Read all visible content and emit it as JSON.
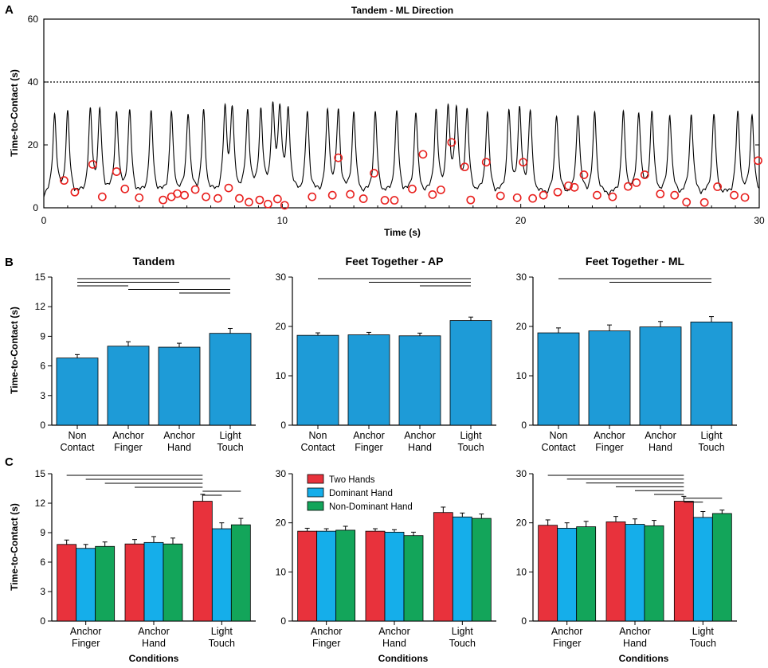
{
  "figure": {
    "panel_letters": [
      "A",
      "B",
      "C"
    ]
  },
  "colors": {
    "blue_bar": "#1E9BD7",
    "two_hands": "#E8323C",
    "dominant_hand": "#15AEEA",
    "non_dominant_hand": "#13A55A",
    "marker": "#E8201E"
  },
  "chart_data": [
    {
      "id": "A",
      "type": "line",
      "title": "Tandem - ML Direction",
      "xlabel": "Time (s)",
      "ylabel": "Time-to-Contact (s)",
      "xlim": [
        0,
        30
      ],
      "ylim": [
        0,
        60
      ],
      "xticks": [
        0,
        10,
        20,
        30
      ],
      "yticks": [
        0,
        20,
        40,
        60
      ],
      "threshold": 40,
      "spike_times": [
        0.45,
        1.0,
        1.95,
        2.35,
        3.05,
        3.6,
        4.5,
        5.35,
        6.05,
        6.7,
        7.6,
        7.9,
        8.55,
        9.1,
        9.6,
        9.9,
        10.25,
        11.05,
        11.9,
        12.35,
        13.0,
        13.9,
        14.8,
        15.6,
        16.45,
        16.95,
        17.3,
        17.75,
        18.6,
        19.5,
        19.95,
        20.4,
        21.5,
        22.4,
        23.1,
        24.3,
        24.95,
        25.5,
        26.25,
        27.15,
        28.1,
        29.1,
        29.7
      ],
      "marker_points": [
        [
          0.85,
          8.7
        ],
        [
          1.3,
          5.0
        ],
        [
          2.05,
          13.8
        ],
        [
          2.45,
          3.5
        ],
        [
          3.05,
          11.5
        ],
        [
          3.4,
          6.0
        ],
        [
          4.0,
          3.2
        ],
        [
          5.0,
          2.5
        ],
        [
          5.35,
          3.5
        ],
        [
          5.6,
          4.5
        ],
        [
          5.9,
          4.0
        ],
        [
          6.35,
          5.8
        ],
        [
          6.8,
          3.5
        ],
        [
          7.3,
          3.0
        ],
        [
          7.75,
          6.3
        ],
        [
          8.2,
          3.0
        ],
        [
          8.6,
          1.8
        ],
        [
          9.05,
          2.5
        ],
        [
          9.4,
          1.2
        ],
        [
          9.8,
          2.8
        ],
        [
          10.1,
          0.8
        ],
        [
          11.25,
          3.5
        ],
        [
          12.1,
          4.0
        ],
        [
          12.35,
          15.9
        ],
        [
          12.85,
          4.3
        ],
        [
          13.4,
          2.9
        ],
        [
          13.85,
          11.0
        ],
        [
          14.3,
          2.4
        ],
        [
          14.7,
          2.4
        ],
        [
          15.45,
          6.0
        ],
        [
          15.9,
          17.0
        ],
        [
          16.3,
          4.2
        ],
        [
          16.65,
          5.7
        ],
        [
          17.1,
          20.8
        ],
        [
          17.65,
          13.0
        ],
        [
          17.9,
          2.5
        ],
        [
          18.55,
          14.5
        ],
        [
          19.15,
          3.8
        ],
        [
          19.85,
          3.2
        ],
        [
          20.1,
          14.5
        ],
        [
          20.5,
          3.0
        ],
        [
          20.95,
          4.0
        ],
        [
          21.55,
          5.0
        ],
        [
          22.0,
          7.0
        ],
        [
          22.25,
          6.5
        ],
        [
          22.65,
          10.5
        ],
        [
          23.2,
          4.0
        ],
        [
          23.85,
          3.5
        ],
        [
          24.5,
          6.8
        ],
        [
          24.85,
          8.0
        ],
        [
          25.2,
          10.5
        ],
        [
          25.85,
          4.4
        ],
        [
          26.45,
          4.0
        ],
        [
          26.95,
          1.8
        ],
        [
          27.7,
          1.7
        ],
        [
          28.25,
          6.7
        ],
        [
          28.95,
          4.0
        ],
        [
          29.4,
          3.3
        ],
        [
          29.95,
          15.0
        ]
      ]
    },
    {
      "id": "B1",
      "type": "bar",
      "title": "Tandem",
      "ylabel": "Time-to-Contact (s)",
      "categories": [
        [
          "Non",
          "Contact"
        ],
        [
          "Anchor",
          "Finger"
        ],
        [
          "Anchor",
          "Hand"
        ],
        [
          "Light",
          "Touch"
        ]
      ],
      "values": [
        6.8,
        8.0,
        7.9,
        9.3
      ],
      "errors": [
        0.35,
        0.45,
        0.4,
        0.5
      ],
      "ylim": [
        0,
        15
      ],
      "yticks": [
        0,
        3,
        6,
        9,
        12,
        15
      ],
      "sig_bars": [
        [
          0,
          3
        ],
        [
          0,
          2
        ],
        [
          0,
          1
        ],
        [
          1,
          3
        ],
        [
          2,
          3
        ]
      ]
    },
    {
      "id": "B2",
      "type": "bar",
      "title": "Feet Together - AP",
      "categories": [
        [
          "Non",
          "Contact"
        ],
        [
          "Anchor",
          "Finger"
        ],
        [
          "Anchor",
          "Hand"
        ],
        [
          "Light",
          "Touch"
        ]
      ],
      "values": [
        18.2,
        18.3,
        18.1,
        21.2
      ],
      "errors": [
        0.5,
        0.5,
        0.55,
        0.7
      ],
      "ylim": [
        0,
        30
      ],
      "yticks": [
        0,
        10,
        20,
        30
      ],
      "sig_bars": [
        [
          0,
          3
        ],
        [
          1,
          3
        ],
        [
          2,
          3
        ]
      ]
    },
    {
      "id": "B3",
      "type": "bar",
      "title": "Feet Together - ML",
      "categories": [
        [
          "Non",
          "Contact"
        ],
        [
          "Anchor",
          "Finger"
        ],
        [
          "Anchor",
          "Hand"
        ],
        [
          "Light",
          "Touch"
        ]
      ],
      "values": [
        18.7,
        19.1,
        19.9,
        20.9
      ],
      "errors": [
        1.0,
        1.2,
        1.1,
        1.1
      ],
      "ylim": [
        0,
        30
      ],
      "yticks": [
        0,
        10,
        20,
        30
      ],
      "sig_bars": [
        [
          0,
          3
        ],
        [
          1,
          3
        ]
      ]
    },
    {
      "id": "C1",
      "type": "bar",
      "ylabel": "Time-to-Contact (s)",
      "xlabel": "Conditions",
      "categories": [
        [
          "Anchor",
          "Finger"
        ],
        [
          "Anchor",
          "Hand"
        ],
        [
          "Light",
          "Touch"
        ]
      ],
      "series": [
        {
          "name": "Two Hands",
          "values": [
            7.8,
            7.85,
            12.2
          ],
          "errors": [
            0.45,
            0.45,
            0.7
          ]
        },
        {
          "name": "Dominant Hand",
          "values": [
            7.4,
            8.0,
            9.4
          ],
          "errors": [
            0.4,
            0.6,
            0.6
          ]
        },
        {
          "name": "Non-Dominant Hand",
          "values": [
            7.6,
            7.85,
            9.8
          ],
          "errors": [
            0.45,
            0.6,
            0.65
          ]
        }
      ],
      "ylim": [
        0,
        15
      ],
      "yticks": [
        0,
        3,
        6,
        9,
        12,
        15
      ],
      "sig_bars": [
        [
          [
            0,
            0
          ],
          [
            2,
            0
          ]
        ],
        [
          [
            0,
            1
          ],
          [
            2,
            0
          ]
        ],
        [
          [
            0,
            2
          ],
          [
            2,
            0
          ]
        ],
        [
          [
            1,
            0
          ],
          [
            2,
            0
          ]
        ],
        [
          [
            2,
            0
          ],
          [
            2,
            2
          ]
        ],
        [
          [
            2,
            0
          ],
          [
            2,
            1
          ]
        ]
      ]
    },
    {
      "id": "C2",
      "type": "bar",
      "xlabel": "Conditions",
      "categories": [
        [
          "Anchor",
          "Finger"
        ],
        [
          "Anchor",
          "Hand"
        ],
        [
          "Light",
          "Touch"
        ]
      ],
      "series": [
        {
          "name": "Two Hands",
          "values": [
            18.3,
            18.3,
            22.1
          ],
          "errors": [
            0.6,
            0.5,
            1.1
          ]
        },
        {
          "name": "Dominant Hand",
          "values": [
            18.3,
            18.1,
            21.2
          ],
          "errors": [
            0.5,
            0.5,
            0.8
          ]
        },
        {
          "name": "Non-Dominant Hand",
          "values": [
            18.5,
            17.4,
            20.9
          ],
          "errors": [
            0.8,
            0.7,
            0.9
          ]
        }
      ],
      "ylim": [
        0,
        30
      ],
      "yticks": [
        0,
        10,
        20,
        30
      ],
      "legend": {
        "position": "top-left",
        "entries": [
          "Two Hands",
          "Dominant Hand",
          "Non-Dominant Hand"
        ]
      },
      "sig_bars": []
    },
    {
      "id": "C3",
      "type": "bar",
      "xlabel": "Conditions",
      "categories": [
        [
          "Anchor",
          "Finger"
        ],
        [
          "Anchor",
          "Hand"
        ],
        [
          "Light",
          "Touch"
        ]
      ],
      "series": [
        {
          "name": "Two Hands",
          "values": [
            19.5,
            20.2,
            24.4
          ],
          "errors": [
            1.1,
            1.1,
            1.0
          ]
        },
        {
          "name": "Dominant Hand",
          "values": [
            18.9,
            19.7,
            21.1
          ],
          "errors": [
            1.1,
            1.1,
            1.2
          ]
        },
        {
          "name": "Non-Dominant Hand",
          "values": [
            19.2,
            19.4,
            21.9
          ],
          "errors": [
            1.1,
            1.1,
            0.7
          ]
        }
      ],
      "ylim": [
        0,
        30
      ],
      "yticks": [
        0,
        10,
        20,
        30
      ],
      "sig_bars": [
        [
          [
            0,
            0
          ],
          [
            2,
            0
          ]
        ],
        [
          [
            0,
            1
          ],
          [
            2,
            0
          ]
        ],
        [
          [
            0,
            2
          ],
          [
            2,
            0
          ]
        ],
        [
          [
            1,
            0
          ],
          [
            2,
            0
          ]
        ],
        [
          [
            1,
            1
          ],
          [
            2,
            0
          ]
        ],
        [
          [
            1,
            2
          ],
          [
            2,
            0
          ]
        ],
        [
          [
            2,
            0
          ],
          [
            2,
            2
          ]
        ],
        [
          [
            2,
            0
          ],
          [
            2,
            1
          ]
        ]
      ]
    }
  ]
}
